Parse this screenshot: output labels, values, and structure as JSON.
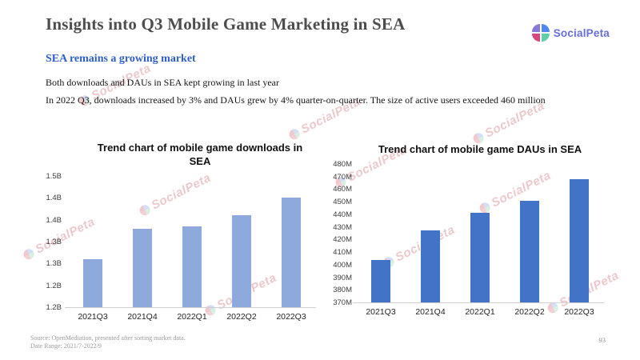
{
  "page": {
    "title": "Insights into Q3 Mobile Game Marketing in SEA",
    "subtitle": "SEA remains a growing market",
    "body_line1": "Both downloads and DAUs in SEA kept growing in last year",
    "body_line2": "In 2022 Q3, downloads increased by 3% and DAUs grew by 4% quarter-on-quarter. The size of active users exceeded 460 million",
    "page_number": "93"
  },
  "logo": {
    "name": "SocialPeta"
  },
  "watermark": {
    "text": "SocialPeta"
  },
  "footer": {
    "source": "Source: OpenMediation, presented after sorting market data.",
    "date_range": "Date Range: 2021/7-2022/9"
  },
  "colors": {
    "downloads_bar": "#8EA9DB",
    "daus_bar": "#4173C6",
    "subtitle_blue": "#2e5fc7",
    "title_gray": "#4d4d4d"
  },
  "chart_data": [
    {
      "type": "bar",
      "title": "Trend chart of mobile game downloads in SEA",
      "title_lines": [
        "Trend chart of mobile game downloads in",
        "SEA"
      ],
      "categories": [
        "2021Q3",
        "2021Q4",
        "2022Q1",
        "2022Q2",
        "2022Q3"
      ],
      "values": [
        1.31,
        1.38,
        1.385,
        1.41,
        1.45
      ],
      "unit": "B",
      "ylabel": "",
      "xlabel": "",
      "ylim": [
        1.2,
        1.5
      ],
      "ytick_labels": [
        "1.5B",
        "1.4B",
        "1.4B",
        "1.3B",
        "1.3B",
        "1.2B",
        "1.2B"
      ],
      "grid": false,
      "legend": "none",
      "bar_color": "#8EA9DB"
    },
    {
      "type": "bar",
      "title": "Trend chart of mobile game DAUs in SEA",
      "title_lines": [
        "Trend chart of mobile game DAUs in SEA"
      ],
      "categories": [
        "2021Q3",
        "2021Q4",
        "2022Q1",
        "2022Q2",
        "2022Q3"
      ],
      "values": [
        404,
        427,
        441,
        451,
        468
      ],
      "unit": "M",
      "ylabel": "",
      "xlabel": "",
      "ylim": [
        370,
        480
      ],
      "ytick_labels": [
        "480M",
        "470M",
        "460M",
        "450M",
        "440M",
        "430M",
        "420M",
        "410M",
        "400M",
        "390M",
        "380M",
        "370M"
      ],
      "grid": false,
      "legend": "none",
      "bar_color": "#4173C6"
    }
  ]
}
